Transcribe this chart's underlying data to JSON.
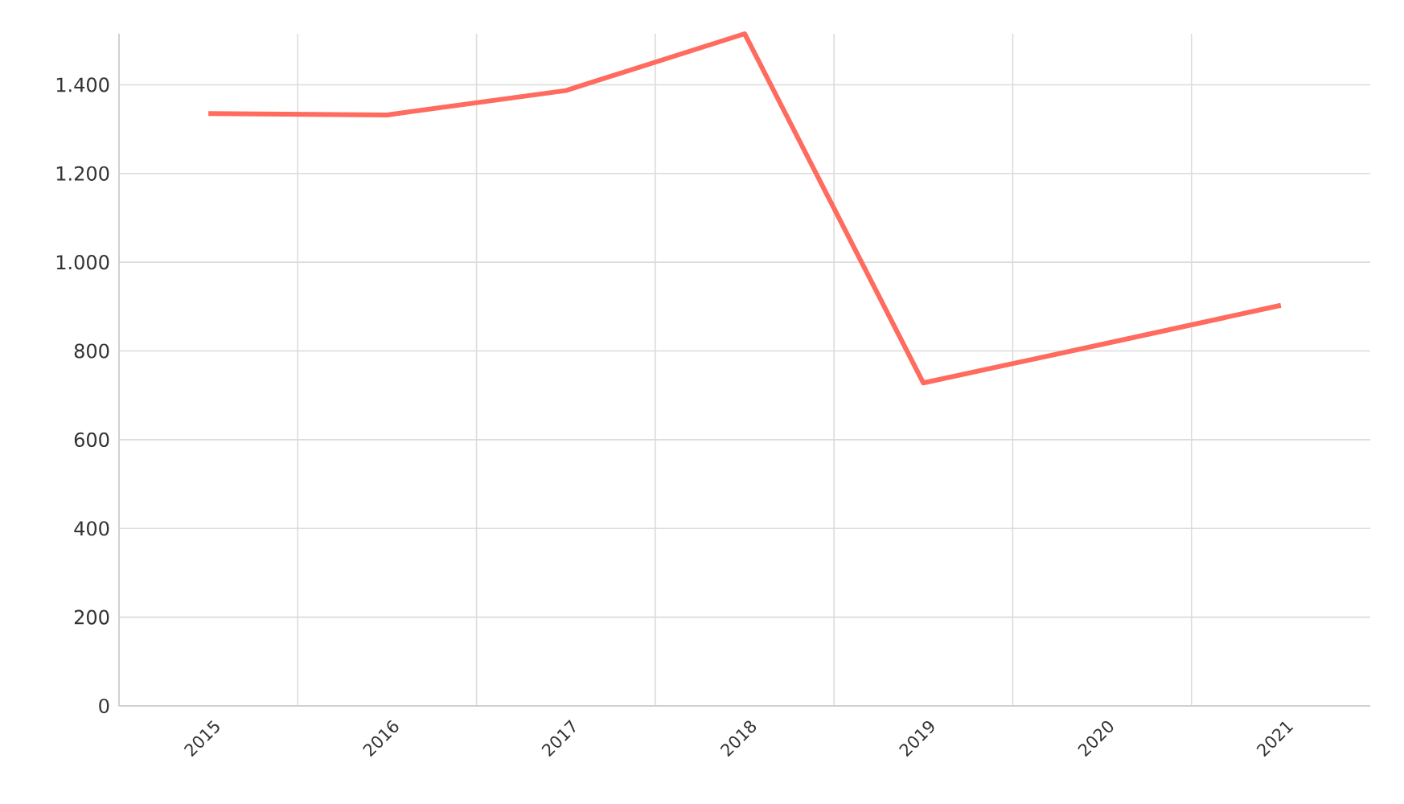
{
  "chart_data": {
    "type": "line",
    "categories": [
      "2015",
      "2016",
      "2017",
      "2018",
      "2019",
      "2020",
      "2021"
    ],
    "values": [
      1335,
      1332,
      1387,
      1515,
      728,
      815,
      903
    ],
    "color": "#ff6b5e",
    "line_style": "solid",
    "ylim": [
      0,
      1515
    ],
    "yticks": [
      0,
      200,
      400,
      600,
      800,
      {
        "value": 1000,
        "label": "1.000"
      },
      {
        "value": 1200,
        "label": "1.200"
      },
      {
        "value": 1400,
        "label": "1.400"
      }
    ],
    "grid": true
  }
}
